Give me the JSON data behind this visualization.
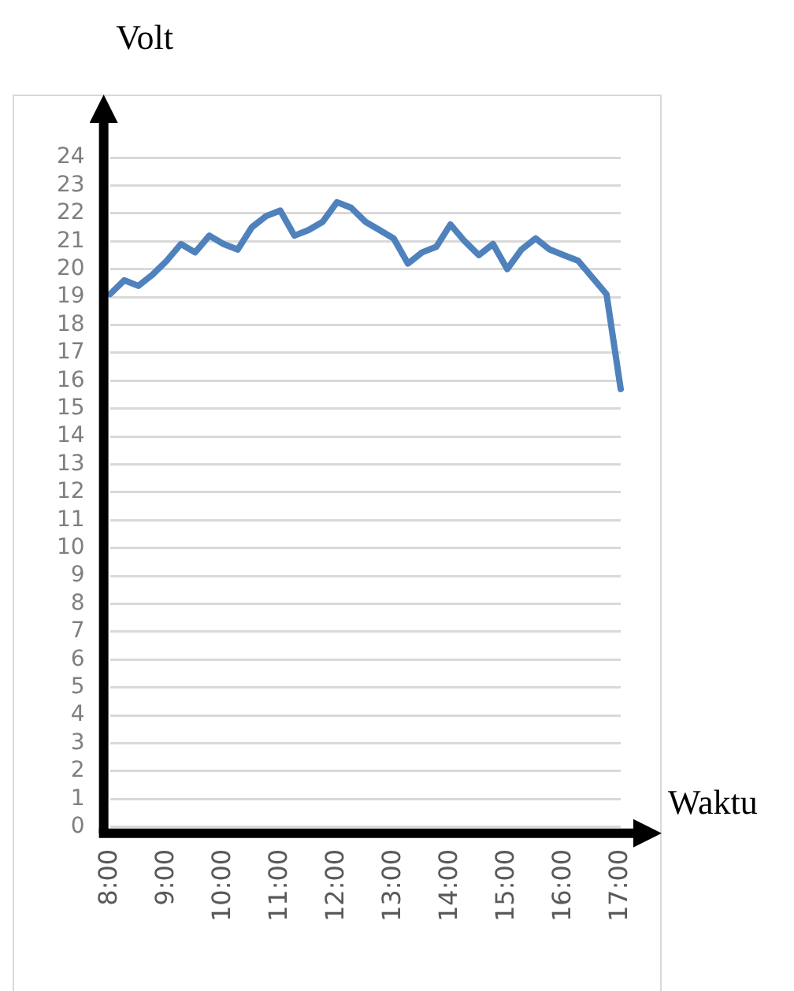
{
  "chart_data": {
    "type": "line",
    "xlabel": "Waktu",
    "ylabel": "Volt",
    "categories": [
      "8:00",
      null,
      null,
      null,
      "9:00",
      null,
      null,
      null,
      "10:00",
      null,
      null,
      null,
      "11:00",
      null,
      null,
      null,
      "12:00",
      null,
      null,
      null,
      "13:00",
      null,
      null,
      null,
      "14:00",
      null,
      null,
      null,
      "15:00",
      null,
      null,
      null,
      "16:00",
      null,
      null,
      null,
      "17:00"
    ],
    "series": [
      {
        "color": "#4f81bd",
        "values": [
          19.1,
          19.6,
          19.4,
          19.8,
          20.3,
          20.9,
          20.6,
          21.2,
          20.9,
          20.7,
          21.5,
          21.9,
          22.1,
          21.2,
          21.4,
          21.7,
          22.4,
          22.2,
          21.7,
          21.4,
          21.1,
          20.2,
          20.6,
          20.8,
          21.6,
          21.0,
          20.5,
          20.9,
          20.0,
          20.7,
          21.1,
          20.7,
          20.5,
          20.3,
          19.7,
          19.1,
          15.7
        ]
      }
    ],
    "ylim": [
      0,
      24
    ],
    "yticks": [
      0,
      1,
      2,
      3,
      4,
      5,
      6,
      7,
      8,
      9,
      10,
      11,
      12,
      13,
      14,
      15,
      16,
      17,
      18,
      19,
      20,
      21,
      22,
      23,
      24
    ],
    "grid": "y",
    "legend": false,
    "marker": "none",
    "line_style": "solid"
  }
}
